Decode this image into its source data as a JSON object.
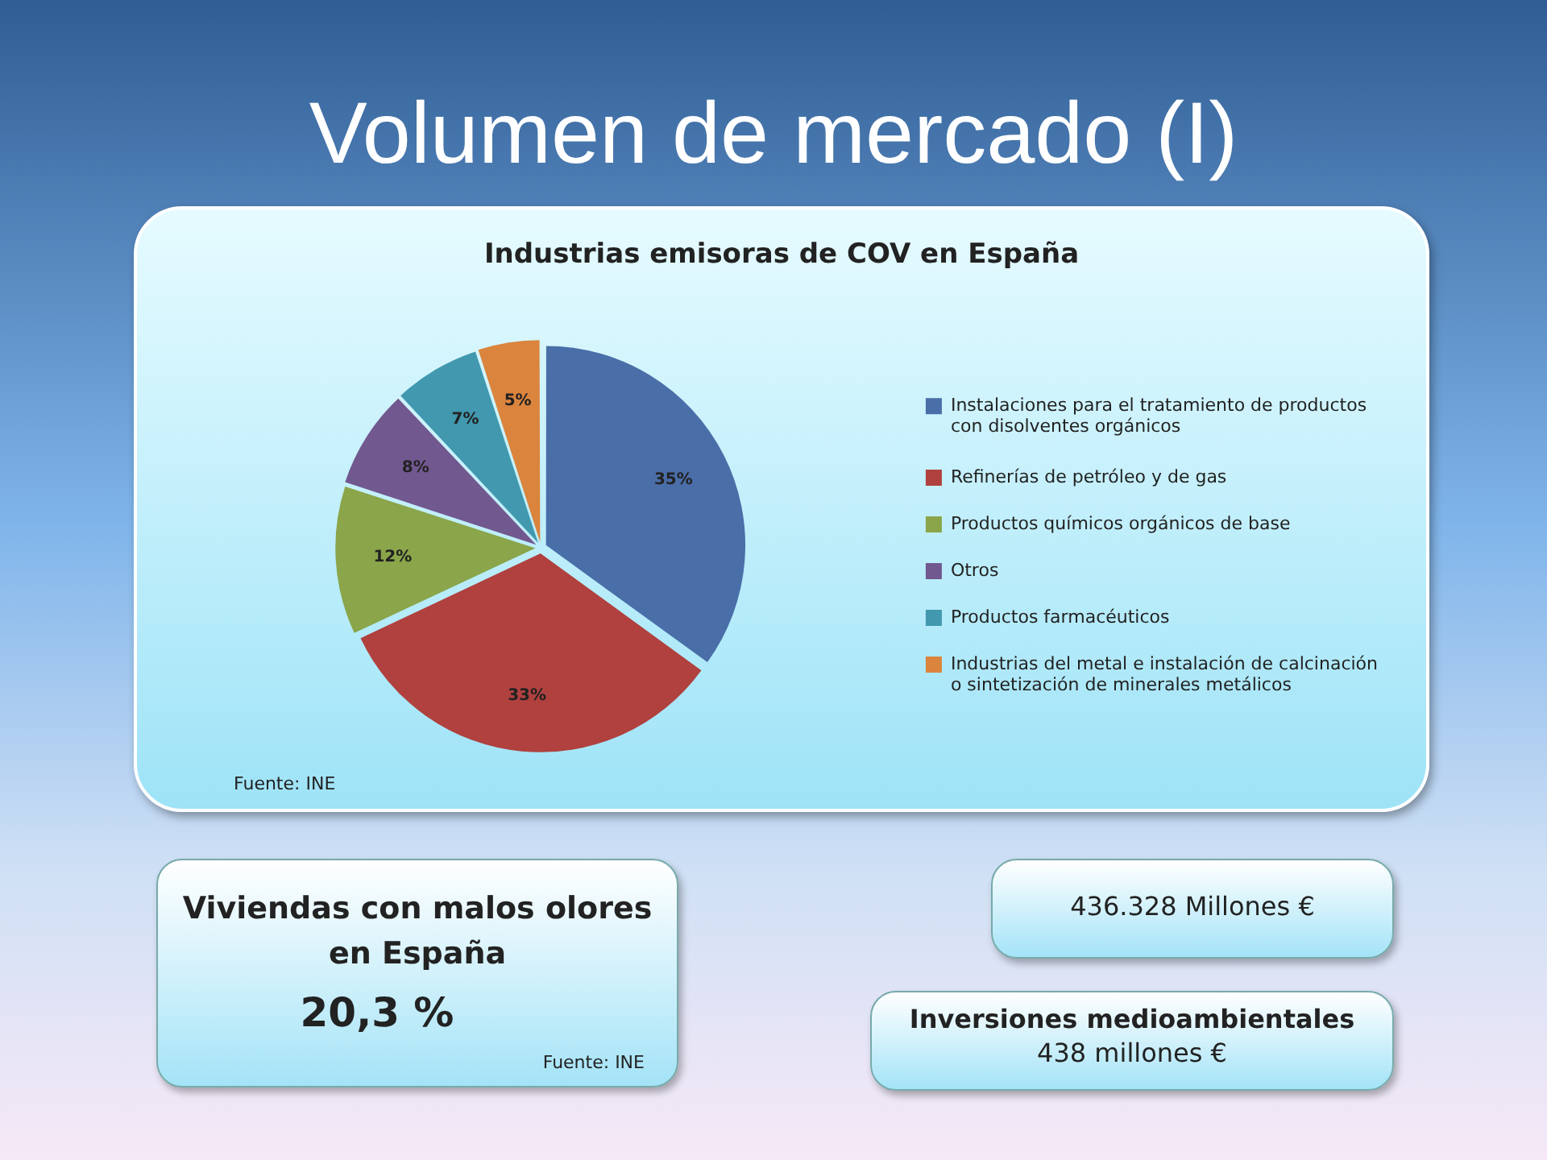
{
  "chart_data": [
    {
      "type": "pie",
      "title": "Volumen de mercado (I)",
      "subtitle": "Industrias emisoras de COV en España",
      "categories": [
        "Instalaciones para el tratamiento de productos con disolventes orgánicos",
        "Refinerías de petróleo y de gas",
        "Productos químicos orgánicos de base",
        "Otros",
        "Productos farmacéuticos",
        "Industrias del metal e instalación de calcinación o sintetización de minerales metálicos"
      ],
      "values": [
        35,
        33,
        12,
        8,
        7,
        5
      ],
      "value_labels": [
        "35%",
        "33%",
        "12%",
        "8%",
        "7%",
        "5%"
      ],
      "colors": [
        "#4a6ea8",
        "#b0413e",
        "#8aa54a",
        "#71588f",
        "#4198af",
        "#db843d"
      ],
      "legend": "right",
      "annotations": [
        "Fuente: INE"
      ]
    },
    {
      "type": "other",
      "title": "Viviendas con malos olores en España",
      "annotations": [
        "20,3 %",
        "Fuente: INE"
      ]
    },
    {
      "type": "other",
      "annotations": [
        "436.328 Millones €"
      ]
    },
    {
      "type": "other",
      "title": "Inversiones medioambientales",
      "annotations": [
        "438 millones €"
      ]
    }
  ]
}
